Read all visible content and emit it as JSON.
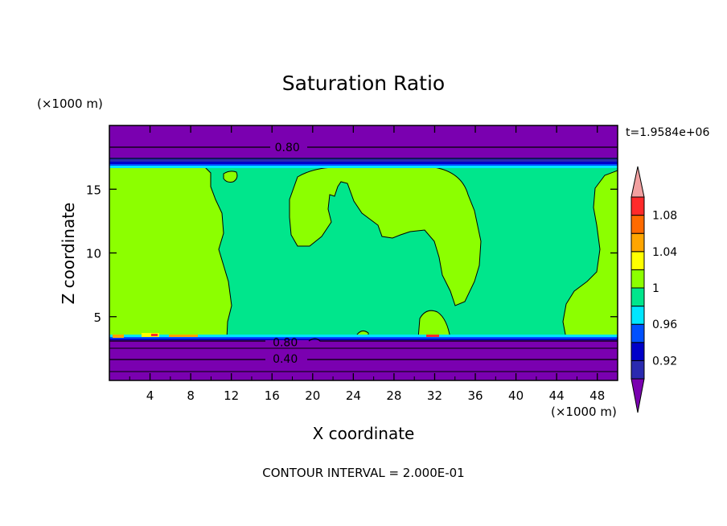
{
  "chart_data": {
    "type": "heatmap",
    "title": "Saturation Ratio",
    "xlabel": "X coordinate",
    "ylabel": "Z coordinate",
    "x_unit": "(×1000 m)",
    "y_unit": "(×1000 m)",
    "time_label": "t=1.9584e+06",
    "footer": "CONTOUR INTERVAL = 2.000E-01",
    "xlim": [
      0,
      50
    ],
    "ylim": [
      0,
      20
    ],
    "x_ticks": [
      4,
      8,
      12,
      16,
      20,
      24,
      28,
      32,
      36,
      40,
      44,
      48
    ],
    "y_ticks": [
      5,
      10,
      15
    ],
    "colorbar": {
      "colors": [
        "#7a00b0",
        "#2a2ab0",
        "#0000c8",
        "#0050ff",
        "#00e6ff",
        "#00e68c",
        "#8cff00",
        "#ffff00",
        "#ffa500",
        "#ff6a00",
        "#ff2a2a",
        "#f2a0a0"
      ],
      "labels": [
        "0.92",
        "0.96",
        "1",
        "1.04",
        "1.08"
      ]
    },
    "contour_labels": [
      {
        "text": "0.80",
        "x": 17.5,
        "z": 18.3
      },
      {
        "text": "0.80",
        "x": 17.3,
        "z": 3.0
      },
      {
        "text": "0.40",
        "x": 17.3,
        "z": 1.7
      }
    ],
    "field_regions": [
      {
        "value_class": "< 0.92",
        "color": "#7a00b0",
        "z_range": [
          0,
          3.4
        ]
      },
      {
        "value_class": "< 0.92",
        "color": "#7a00b0",
        "z_range": [
          16.9,
          20
        ]
      },
      {
        "value_class": "0.98-1.00",
        "color": "#00e68c",
        "z_range": [
          3.5,
          16.7
        ]
      },
      {
        "value_class": "1.00-1.02",
        "color": "#8cff00",
        "note": "saturated blobs"
      }
    ]
  }
}
